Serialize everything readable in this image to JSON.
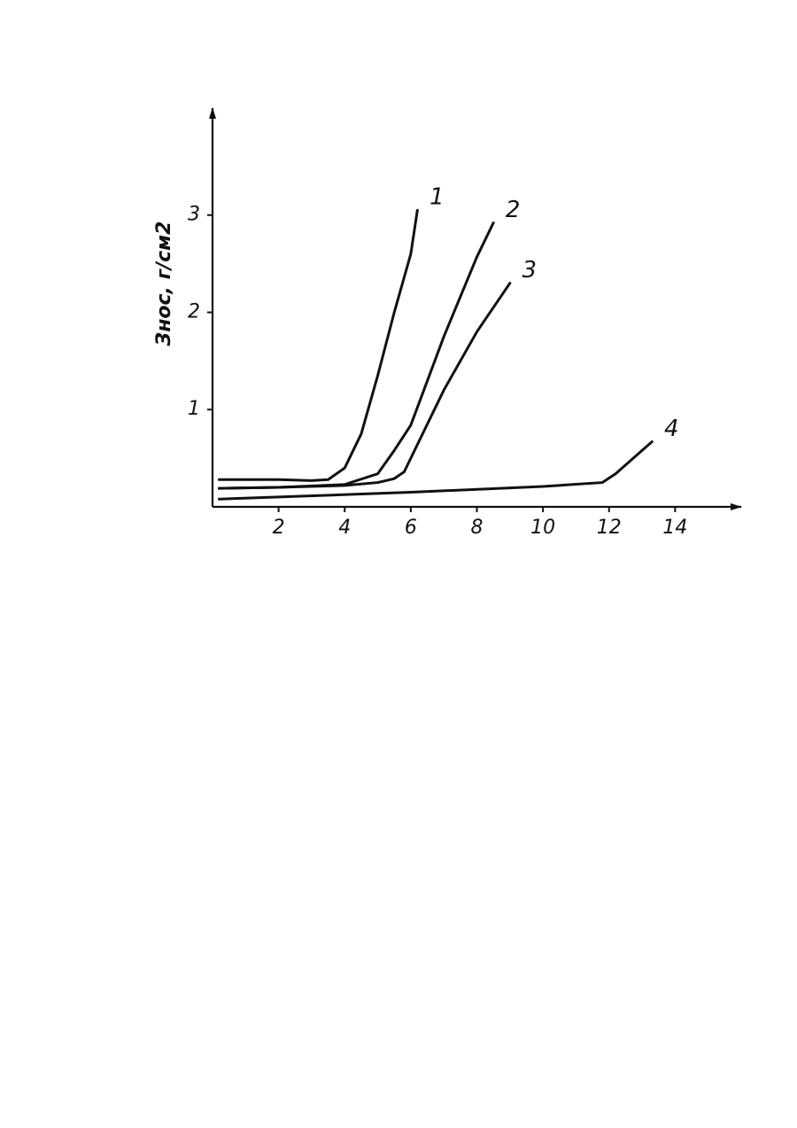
{
  "chart_data": {
    "type": "line",
    "y_label": "Знос, г/см2",
    "xlim": [
      0,
      16
    ],
    "ylim": [
      0,
      4.1
    ],
    "xticks": [
      2,
      4,
      6,
      8,
      10,
      12,
      14
    ],
    "yticks": [
      1,
      2,
      3
    ],
    "grid": false,
    "series": [
      {
        "name": "1",
        "color": "#111111",
        "x": [
          0.2,
          1,
          2,
          3,
          3.5,
          4,
          4.5,
          5,
          5.5,
          6,
          6.2
        ],
        "values": [
          0.28,
          0.28,
          0.28,
          0.27,
          0.28,
          0.4,
          0.75,
          1.35,
          2.0,
          2.6,
          3.05
        ]
      },
      {
        "name": "2",
        "color": "#111111",
        "x": [
          0.2,
          2,
          4,
          5,
          5.5,
          6,
          7,
          8,
          8.5
        ],
        "values": [
          0.19,
          0.2,
          0.23,
          0.34,
          0.58,
          0.84,
          1.75,
          2.57,
          2.92
        ]
      },
      {
        "name": "3",
        "color": "#111111",
        "x": [
          0.2,
          2,
          4,
          5,
          5.5,
          5.8,
          7,
          8,
          9
        ],
        "values": [
          0.19,
          0.2,
          0.22,
          0.25,
          0.29,
          0.36,
          1.2,
          1.8,
          2.3
        ]
      },
      {
        "name": "4",
        "color": "#111111",
        "x": [
          0.2,
          6,
          10,
          11.8,
          12.2,
          13.3
        ],
        "values": [
          0.08,
          0.15,
          0.21,
          0.25,
          0.34,
          0.67
        ]
      }
    ]
  }
}
